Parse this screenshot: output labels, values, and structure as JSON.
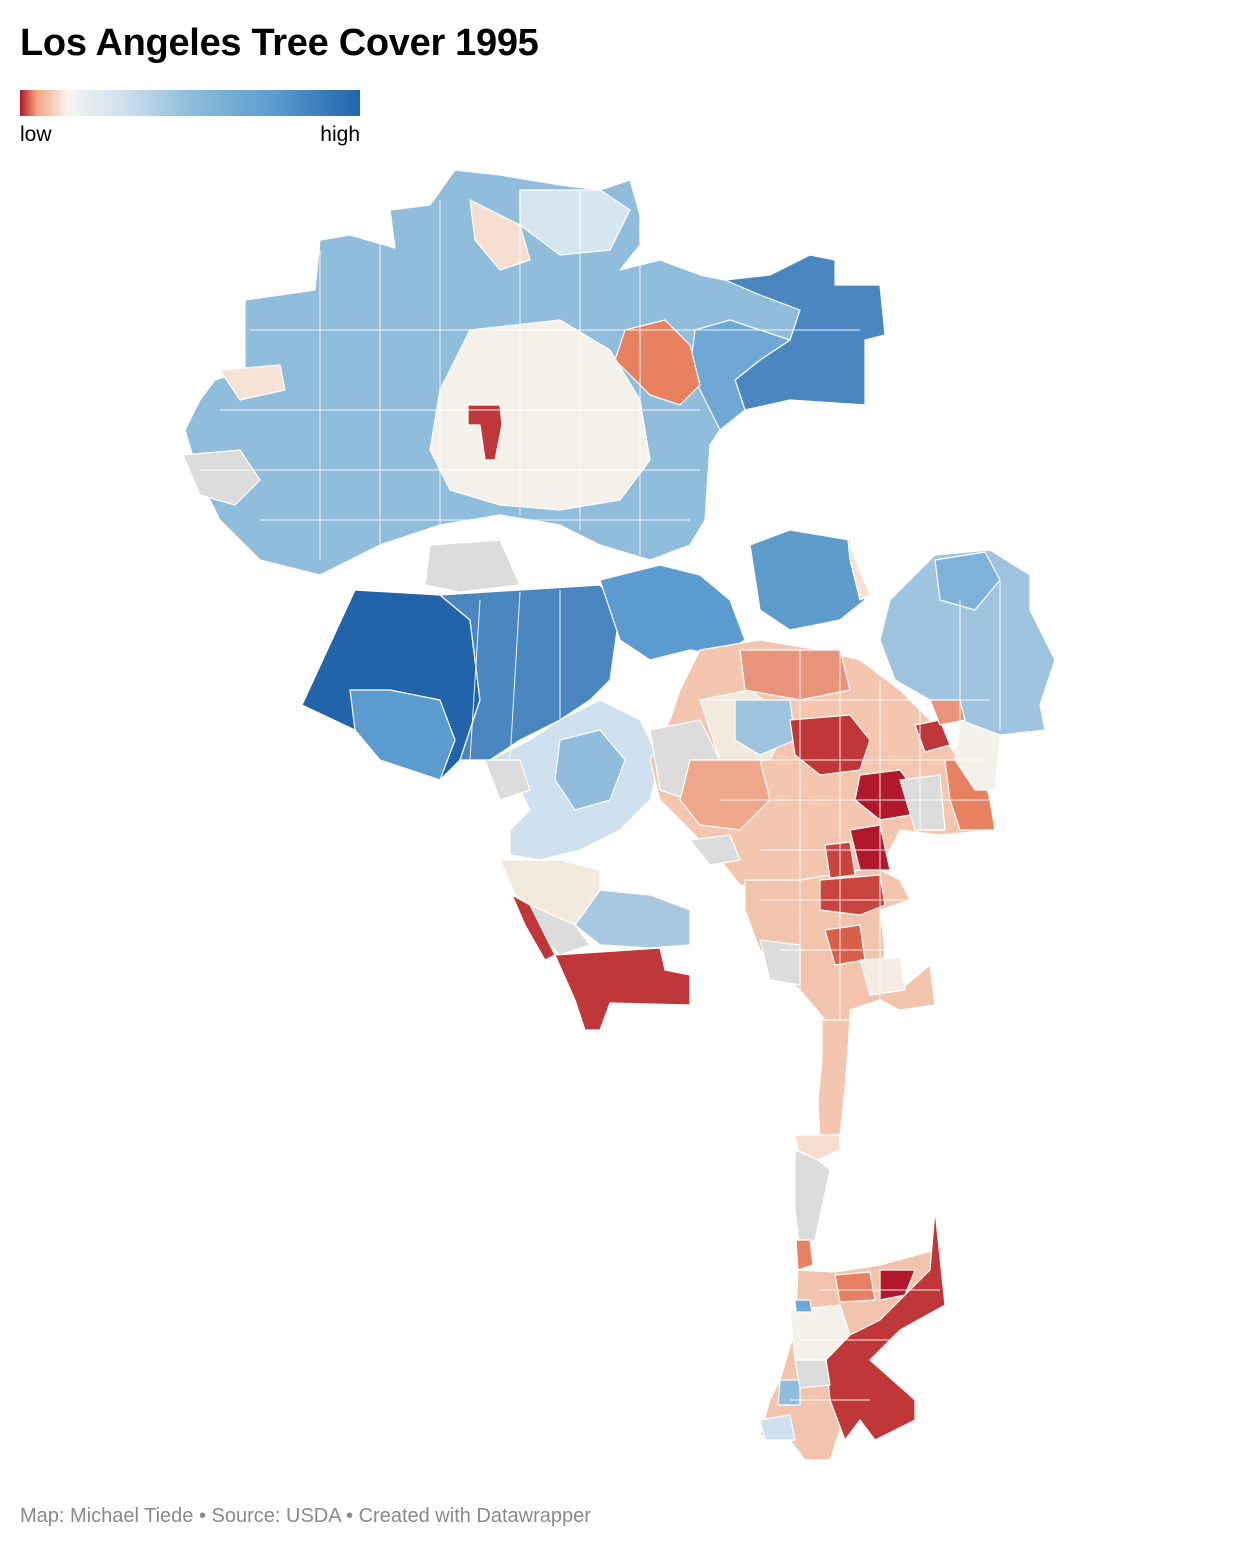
{
  "title": "Los Angeles Tree Cover 1995",
  "legend": {
    "low_label": "low",
    "high_label": "high",
    "colors": [
      "#b2182b",
      "#f4a582",
      "#f7f4ee",
      "#cfe0ee",
      "#8fbddb",
      "#5b9bcf",
      "#2166ac"
    ]
  },
  "footer": {
    "text": "Map: Michael Tiede • Source: USDA • Created with Datawrapper"
  },
  "colors": {
    "no_data": "#dcdcdc",
    "boundary": "#ffffff"
  }
}
